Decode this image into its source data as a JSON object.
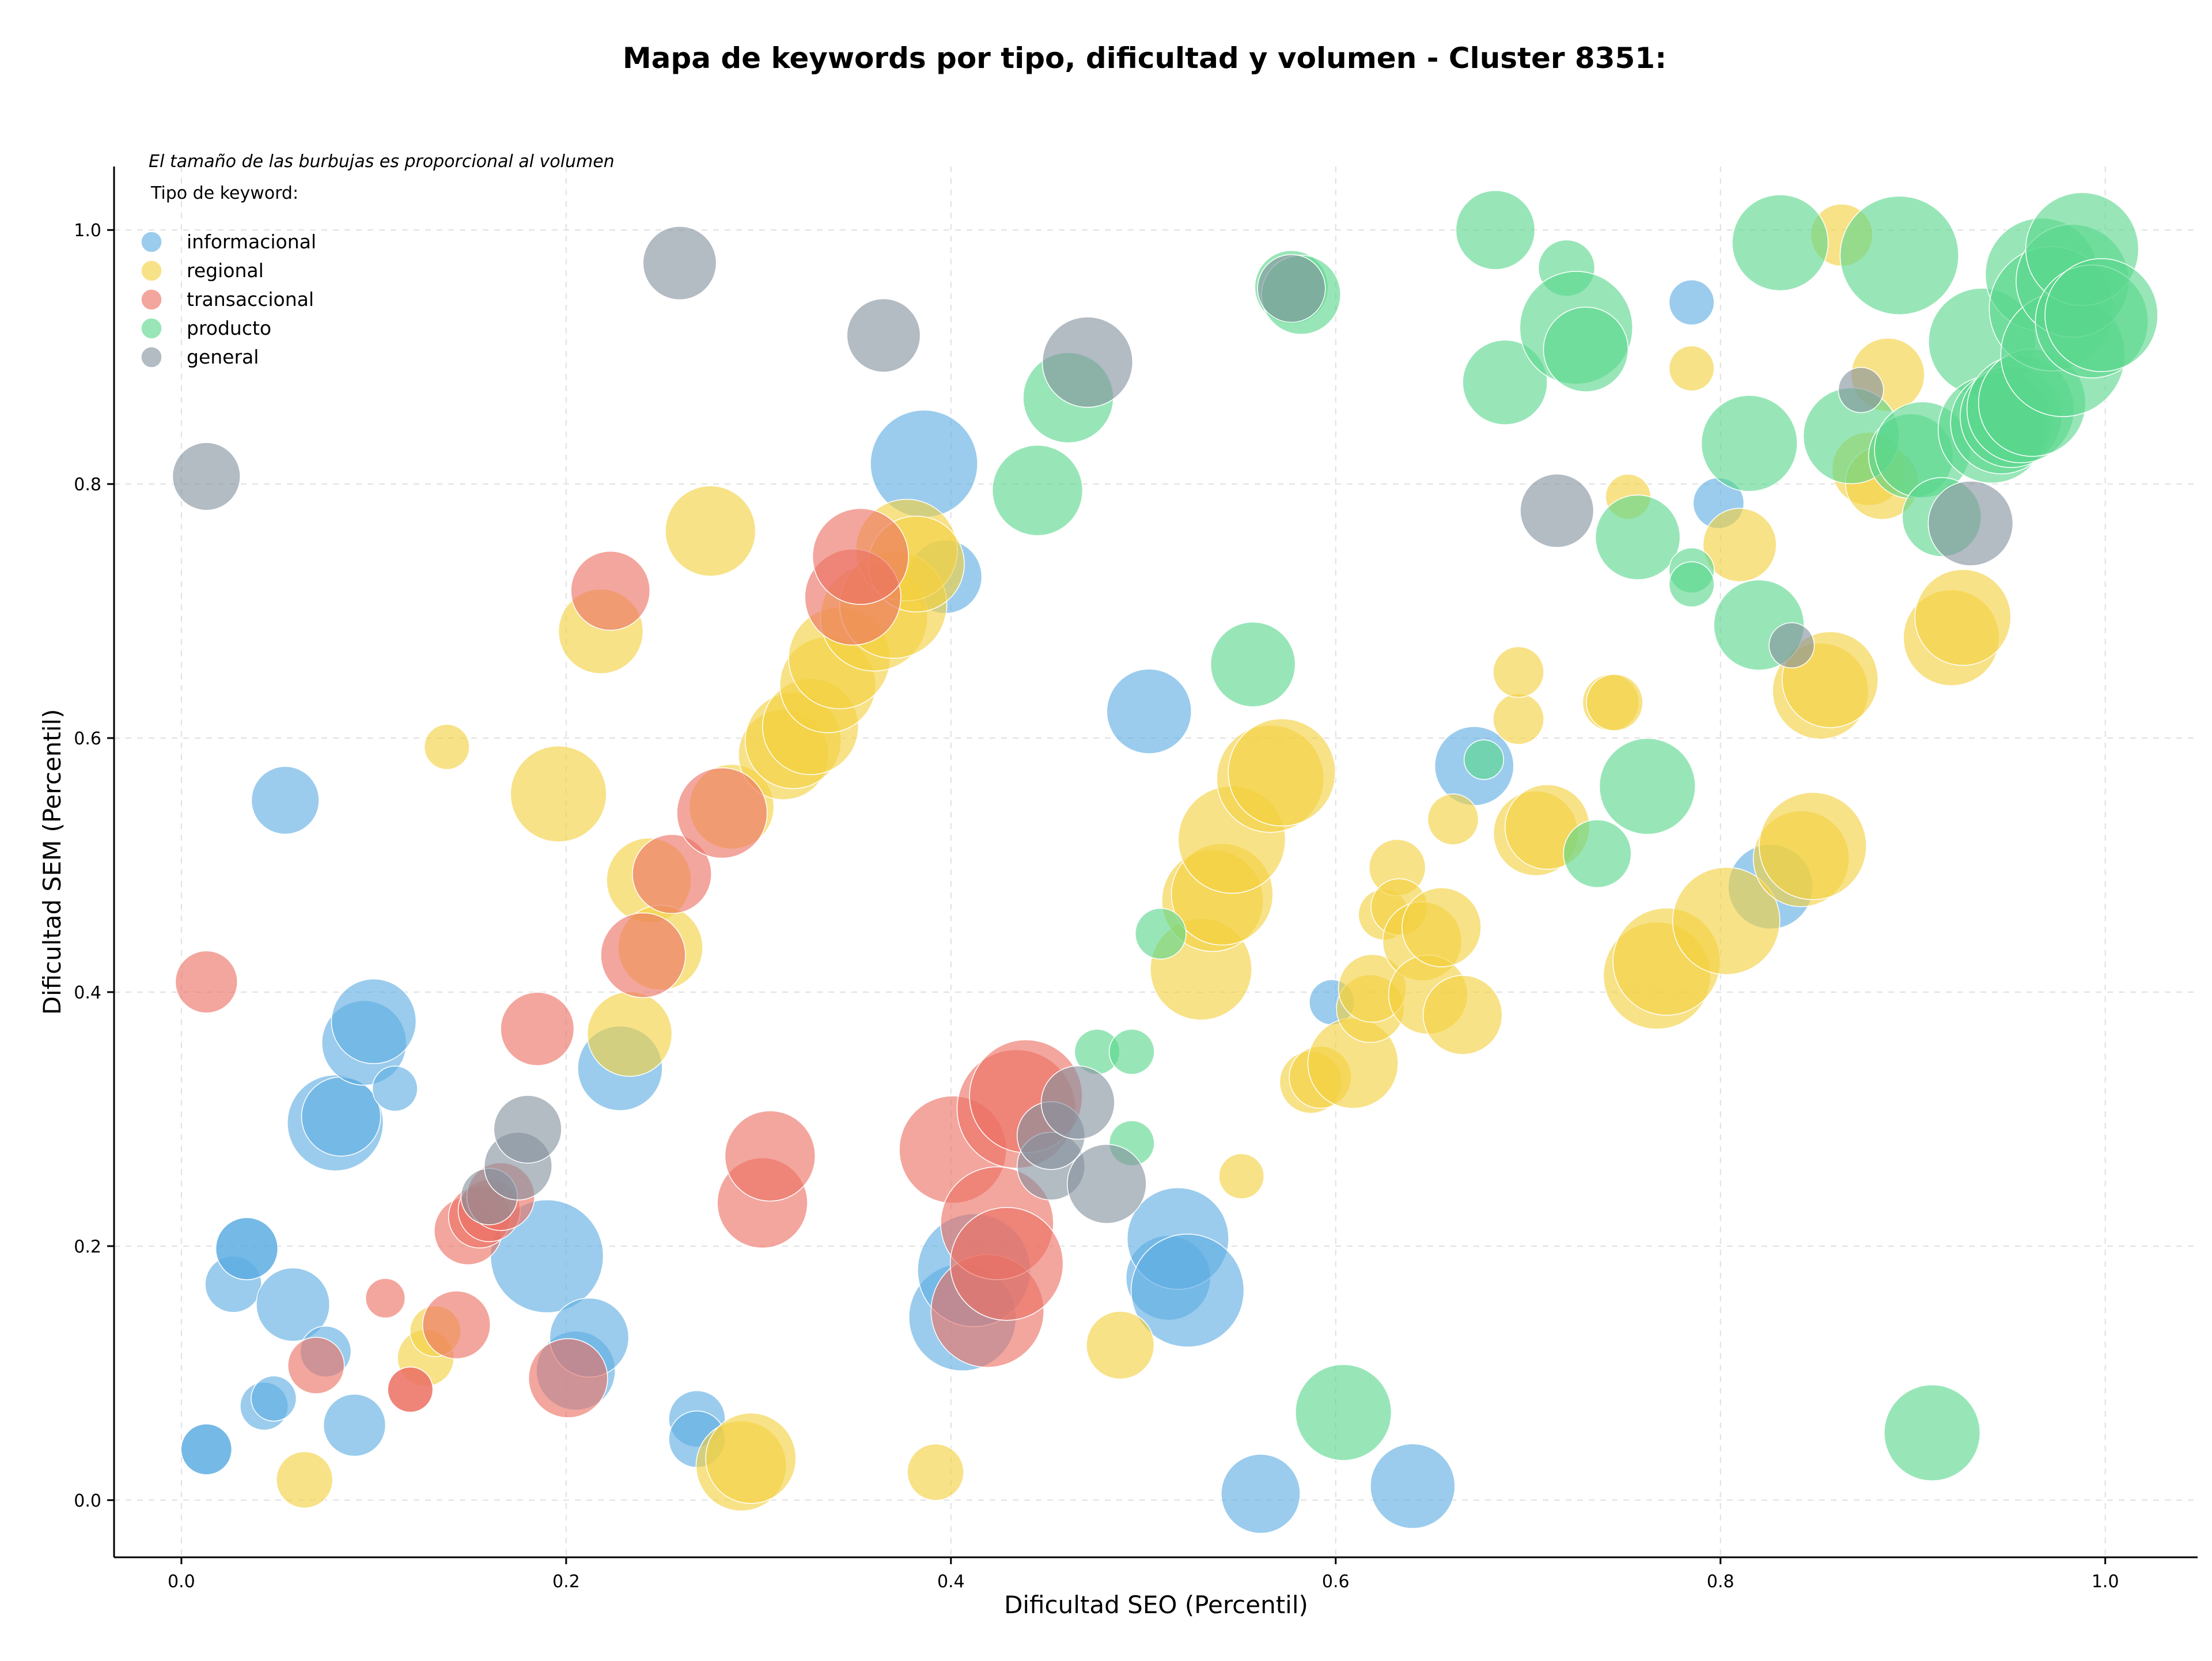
{
  "chart_data": {
    "type": "scatter",
    "title": "Mapa de keywords por tipo, dificultad y volumen - Cluster 8351:",
    "xlabel": "Dificultad SEO (Percentil)",
    "ylabel": "Dificultad SEM (Percentil)",
    "xlim": [
      -0.035,
      1.048
    ],
    "ylim": [
      -0.045,
      1.05
    ],
    "xticks": [
      0.0,
      0.2,
      0.4,
      0.6,
      0.8,
      1.0
    ],
    "xtick_labels": [
      "0.0",
      "0.2",
      "0.4",
      "0.6",
      "0.8",
      "1.0"
    ],
    "yticks": [
      0.0,
      0.2,
      0.4,
      0.6,
      0.8,
      1.0
    ],
    "ytick_labels": [
      "0.0",
      "0.2",
      "0.4",
      "0.6",
      "0.8",
      "1.0"
    ],
    "grid": true,
    "annotation": "El tamaño de las burbujas es proporcional al volumen",
    "legend": {
      "title": "Tipo de keyword:",
      "placement": "top-left"
    },
    "series": [
      {
        "name": "informacional",
        "color": "#5dade2",
        "points": [
          {
            "x": 0.013,
            "y": 0.04,
            "size": 18
          },
          {
            "x": 0.013,
            "y": 0.04,
            "size": 18
          },
          {
            "x": 0.027,
            "y": 0.17,
            "size": 20
          },
          {
            "x": 0.034,
            "y": 0.198,
            "size": 22
          },
          {
            "x": 0.034,
            "y": 0.198,
            "size": 22
          },
          {
            "x": 0.043,
            "y": 0.074,
            "size": 17
          },
          {
            "x": 0.048,
            "y": 0.08,
            "size": 16
          },
          {
            "x": 0.054,
            "y": 0.551,
            "size": 24
          },
          {
            "x": 0.058,
            "y": 0.154,
            "size": 26
          },
          {
            "x": 0.075,
            "y": 0.117,
            "size": 18
          },
          {
            "x": 0.08,
            "y": 0.297,
            "size": 34
          },
          {
            "x": 0.083,
            "y": 0.302,
            "size": 28
          },
          {
            "x": 0.09,
            "y": 0.059,
            "size": 22
          },
          {
            "x": 0.095,
            "y": 0.36,
            "size": 30
          },
          {
            "x": 0.1,
            "y": 0.377,
            "size": 30
          },
          {
            "x": 0.111,
            "y": 0.324,
            "size": 16
          },
          {
            "x": 0.19,
            "y": 0.192,
            "size": 40
          },
          {
            "x": 0.205,
            "y": 0.102,
            "size": 28
          },
          {
            "x": 0.212,
            "y": 0.128,
            "size": 28
          },
          {
            "x": 0.228,
            "y": 0.34,
            "size": 30
          },
          {
            "x": 0.268,
            "y": 0.064,
            "size": 20
          },
          {
            "x": 0.268,
            "y": 0.048,
            "size": 20
          },
          {
            "x": 0.386,
            "y": 0.816,
            "size": 38
          },
          {
            "x": 0.397,
            "y": 0.727,
            "size": 26
          },
          {
            "x": 0.406,
            "y": 0.144,
            "size": 38
          },
          {
            "x": 0.412,
            "y": 0.181,
            "size": 40
          },
          {
            "x": 0.503,
            "y": 0.621,
            "size": 30
          },
          {
            "x": 0.513,
            "y": 0.175,
            "size": 30
          },
          {
            "x": 0.518,
            "y": 0.206,
            "size": 36
          },
          {
            "x": 0.523,
            "y": 0.165,
            "size": 40
          },
          {
            "x": 0.561,
            "y": 0.005,
            "size": 28
          },
          {
            "x": 0.598,
            "y": 0.392,
            "size": 16
          },
          {
            "x": 0.64,
            "y": 0.011,
            "size": 30
          },
          {
            "x": 0.672,
            "y": 0.578,
            "size": 28
          },
          {
            "x": 0.785,
            "y": 0.943,
            "size": 16
          },
          {
            "x": 0.799,
            "y": 0.785,
            "size": 18
          },
          {
            "x": 0.826,
            "y": 0.483,
            "size": 30
          }
        ]
      },
      {
        "name": "regional",
        "color": "#f4d03f",
        "points": [
          {
            "x": 0.064,
            "y": 0.016,
            "size": 20
          },
          {
            "x": 0.127,
            "y": 0.112,
            "size": 20
          },
          {
            "x": 0.132,
            "y": 0.133,
            "size": 18
          },
          {
            "x": 0.138,
            "y": 0.593,
            "size": 16
          },
          {
            "x": 0.196,
            "y": 0.556,
            "size": 34
          },
          {
            "x": 0.218,
            "y": 0.684,
            "size": 30
          },
          {
            "x": 0.233,
            "y": 0.367,
            "size": 30
          },
          {
            "x": 0.243,
            "y": 0.488,
            "size": 30
          },
          {
            "x": 0.249,
            "y": 0.435,
            "size": 30
          },
          {
            "x": 0.275,
            "y": 0.763,
            "size": 32
          },
          {
            "x": 0.286,
            "y": 0.546,
            "size": 30
          },
          {
            "x": 0.291,
            "y": 0.027,
            "size": 32
          },
          {
            "x": 0.296,
            "y": 0.033,
            "size": 32
          },
          {
            "x": 0.313,
            "y": 0.587,
            "size": 32
          },
          {
            "x": 0.318,
            "y": 0.598,
            "size": 34
          },
          {
            "x": 0.327,
            "y": 0.609,
            "size": 34
          },
          {
            "x": 0.336,
            "y": 0.642,
            "size": 34
          },
          {
            "x": 0.342,
            "y": 0.663,
            "size": 36
          },
          {
            "x": 0.36,
            "y": 0.695,
            "size": 38
          },
          {
            "x": 0.37,
            "y": 0.705,
            "size": 38
          },
          {
            "x": 0.377,
            "y": 0.748,
            "size": 36
          },
          {
            "x": 0.382,
            "y": 0.737,
            "size": 34
          },
          {
            "x": 0.392,
            "y": 0.022,
            "size": 20
          },
          {
            "x": 0.488,
            "y": 0.122,
            "size": 24
          },
          {
            "x": 0.551,
            "y": 0.255,
            "size": 16
          },
          {
            "x": 0.53,
            "y": 0.418,
            "size": 36
          },
          {
            "x": 0.536,
            "y": 0.472,
            "size": 36
          },
          {
            "x": 0.541,
            "y": 0.477,
            "size": 36
          },
          {
            "x": 0.546,
            "y": 0.52,
            "size": 38
          },
          {
            "x": 0.566,
            "y": 0.568,
            "size": 38
          },
          {
            "x": 0.572,
            "y": 0.573,
            "size": 38
          },
          {
            "x": 0.587,
            "y": 0.329,
            "size": 22
          },
          {
            "x": 0.592,
            "y": 0.333,
            "size": 22
          },
          {
            "x": 0.609,
            "y": 0.344,
            "size": 32
          },
          {
            "x": 0.618,
            "y": 0.387,
            "size": 24
          },
          {
            "x": 0.619,
            "y": 0.403,
            "size": 24
          },
          {
            "x": 0.625,
            "y": 0.461,
            "size": 18
          },
          {
            "x": 0.632,
            "y": 0.498,
            "size": 20
          },
          {
            "x": 0.633,
            "y": 0.467,
            "size": 20
          },
          {
            "x": 0.645,
            "y": 0.44,
            "size": 28
          },
          {
            "x": 0.648,
            "y": 0.398,
            "size": 28
          },
          {
            "x": 0.655,
            "y": 0.451,
            "size": 28
          },
          {
            "x": 0.661,
            "y": 0.536,
            "size": 18
          },
          {
            "x": 0.666,
            "y": 0.382,
            "size": 28
          },
          {
            "x": 0.695,
            "y": 0.615,
            "size": 18
          },
          {
            "x": 0.695,
            "y": 0.652,
            "size": 18
          },
          {
            "x": 0.704,
            "y": 0.525,
            "size": 30
          },
          {
            "x": 0.71,
            "y": 0.53,
            "size": 30
          },
          {
            "x": 0.743,
            "y": 0.628,
            "size": 20
          },
          {
            "x": 0.745,
            "y": 0.628,
            "size": 20
          },
          {
            "x": 0.752,
            "y": 0.79,
            "size": 16
          },
          {
            "x": 0.767,
            "y": 0.413,
            "size": 38
          },
          {
            "x": 0.772,
            "y": 0.424,
            "size": 38
          },
          {
            "x": 0.785,
            "y": 0.891,
            "size": 16
          },
          {
            "x": 0.803,
            "y": 0.456,
            "size": 38
          },
          {
            "x": 0.81,
            "y": 0.752,
            "size": 26
          },
          {
            "x": 0.842,
            "y": 0.505,
            "size": 34
          },
          {
            "x": 0.848,
            "y": 0.515,
            "size": 38
          },
          {
            "x": 0.852,
            "y": 0.637,
            "size": 34
          },
          {
            "x": 0.857,
            "y": 0.646,
            "size": 34
          },
          {
            "x": 0.863,
            "y": 0.996,
            "size": 22
          },
          {
            "x": 0.877,
            "y": 0.812,
            "size": 26
          },
          {
            "x": 0.884,
            "y": 0.801,
            "size": 26
          },
          {
            "x": 0.887,
            "y": 0.886,
            "size": 26
          },
          {
            "x": 0.92,
            "y": 0.679,
            "size": 34
          },
          {
            "x": 0.926,
            "y": 0.695,
            "size": 34
          }
        ]
      },
      {
        "name": "transaccional",
        "color": "#ec7063",
        "points": [
          {
            "x": 0.013,
            "y": 0.408,
            "size": 22
          },
          {
            "x": 0.07,
            "y": 0.106,
            "size": 20
          },
          {
            "x": 0.106,
            "y": 0.159,
            "size": 14
          },
          {
            "x": 0.119,
            "y": 0.087,
            "size": 16
          },
          {
            "x": 0.119,
            "y": 0.087,
            "size": 16
          },
          {
            "x": 0.143,
            "y": 0.138,
            "size": 24
          },
          {
            "x": 0.149,
            "y": 0.212,
            "size": 24
          },
          {
            "x": 0.155,
            "y": 0.223,
            "size": 22
          },
          {
            "x": 0.16,
            "y": 0.228,
            "size": 22
          },
          {
            "x": 0.166,
            "y": 0.239,
            "size": 24
          },
          {
            "x": 0.185,
            "y": 0.371,
            "size": 26
          },
          {
            "x": 0.201,
            "y": 0.096,
            "size": 28
          },
          {
            "x": 0.223,
            "y": 0.716,
            "size": 28
          },
          {
            "x": 0.24,
            "y": 0.429,
            "size": 30
          },
          {
            "x": 0.255,
            "y": 0.493,
            "size": 28
          },
          {
            "x": 0.281,
            "y": 0.541,
            "size": 32
          },
          {
            "x": 0.302,
            "y": 0.234,
            "size": 32
          },
          {
            "x": 0.306,
            "y": 0.271,
            "size": 32
          },
          {
            "x": 0.349,
            "y": 0.711,
            "size": 34
          },
          {
            "x": 0.353,
            "y": 0.743,
            "size": 34
          },
          {
            "x": 0.401,
            "y": 0.276,
            "size": 38
          },
          {
            "x": 0.419,
            "y": 0.149,
            "size": 40
          },
          {
            "x": 0.424,
            "y": 0.218,
            "size": 40
          },
          {
            "x": 0.429,
            "y": 0.186,
            "size": 40
          },
          {
            "x": 0.434,
            "y": 0.308,
            "size": 42
          },
          {
            "x": 0.439,
            "y": 0.318,
            "size": 40
          }
        ]
      },
      {
        "name": "producto",
        "color": "#58d68d",
        "points": [
          {
            "x": 0.445,
            "y": 0.795,
            "size": 32
          },
          {
            "x": 0.461,
            "y": 0.868,
            "size": 32
          },
          {
            "x": 0.476,
            "y": 0.353,
            "size": 16
          },
          {
            "x": 0.494,
            "y": 0.353,
            "size": 16
          },
          {
            "x": 0.494,
            "y": 0.281,
            "size": 16
          },
          {
            "x": 0.509,
            "y": 0.446,
            "size": 18
          },
          {
            "x": 0.557,
            "y": 0.658,
            "size": 30
          },
          {
            "x": 0.577,
            "y": 0.955,
            "size": 26
          },
          {
            "x": 0.582,
            "y": 0.949,
            "size": 28
          },
          {
            "x": 0.604,
            "y": 0.069,
            "size": 34
          },
          {
            "x": 0.677,
            "y": 0.583,
            "size": 14
          },
          {
            "x": 0.683,
            "y": 1.0,
            "size": 28
          },
          {
            "x": 0.688,
            "y": 0.88,
            "size": 30
          },
          {
            "x": 0.72,
            "y": 0.97,
            "size": 20
          },
          {
            "x": 0.725,
            "y": 0.923,
            "size": 40
          },
          {
            "x": 0.73,
            "y": 0.906,
            "size": 30
          },
          {
            "x": 0.736,
            "y": 0.509,
            "size": 24
          },
          {
            "x": 0.757,
            "y": 0.758,
            "size": 30
          },
          {
            "x": 0.762,
            "y": 0.562,
            "size": 34
          },
          {
            "x": 0.785,
            "y": 0.732,
            "size": 16
          },
          {
            "x": 0.785,
            "y": 0.721,
            "size": 16
          },
          {
            "x": 0.815,
            "y": 0.832,
            "size": 34
          },
          {
            "x": 0.82,
            "y": 0.689,
            "size": 32
          },
          {
            "x": 0.831,
            "y": 0.99,
            "size": 34
          },
          {
            "x": 0.868,
            "y": 0.838,
            "size": 34
          },
          {
            "x": 0.893,
            "y": 0.98,
            "size": 42
          },
          {
            "x": 0.899,
            "y": 0.822,
            "size": 30
          },
          {
            "x": 0.905,
            "y": 0.827,
            "size": 34
          },
          {
            "x": 0.91,
            "y": 0.053,
            "size": 34
          },
          {
            "x": 0.915,
            "y": 0.774,
            "size": 28
          },
          {
            "x": 0.936,
            "y": 0.912,
            "size": 38
          },
          {
            "x": 0.941,
            "y": 0.843,
            "size": 38
          },
          {
            "x": 0.946,
            "y": 0.848,
            "size": 36
          },
          {
            "x": 0.951,
            "y": 0.853,
            "size": 36
          },
          {
            "x": 0.956,
            "y": 0.859,
            "size": 38
          },
          {
            "x": 0.962,
            "y": 0.864,
            "size": 38
          },
          {
            "x": 0.967,
            "y": 0.965,
            "size": 40
          },
          {
            "x": 0.972,
            "y": 0.938,
            "size": 44
          },
          {
            "x": 0.978,
            "y": 0.902,
            "size": 44
          },
          {
            "x": 0.983,
            "y": 0.96,
            "size": 40
          },
          {
            "x": 0.988,
            "y": 0.985,
            "size": 40
          },
          {
            "x": 0.993,
            "y": 0.928,
            "size": 40
          },
          {
            "x": 0.998,
            "y": 0.933,
            "size": 40
          }
        ]
      },
      {
        "name": "general",
        "color": "#85929e",
        "points": [
          {
            "x": 0.013,
            "y": 0.806,
            "size": 24
          },
          {
            "x": 0.16,
            "y": 0.239,
            "size": 20
          },
          {
            "x": 0.175,
            "y": 0.263,
            "size": 24
          },
          {
            "x": 0.18,
            "y": 0.292,
            "size": 24
          },
          {
            "x": 0.259,
            "y": 0.974,
            "size": 26
          },
          {
            "x": 0.365,
            "y": 0.917,
            "size": 26
          },
          {
            "x": 0.452,
            "y": 0.263,
            "size": 24
          },
          {
            "x": 0.452,
            "y": 0.287,
            "size": 24
          },
          {
            "x": 0.466,
            "y": 0.313,
            "size": 26
          },
          {
            "x": 0.471,
            "y": 0.896,
            "size": 32
          },
          {
            "x": 0.481,
            "y": 0.249,
            "size": 28
          },
          {
            "x": 0.577,
            "y": 0.954,
            "size": 24
          },
          {
            "x": 0.715,
            "y": 0.779,
            "size": 26
          },
          {
            "x": 0.837,
            "y": 0.673,
            "size": 16
          },
          {
            "x": 0.873,
            "y": 0.874,
            "size": 16
          },
          {
            "x": 0.93,
            "y": 0.769,
            "size": 30
          }
        ]
      }
    ]
  }
}
